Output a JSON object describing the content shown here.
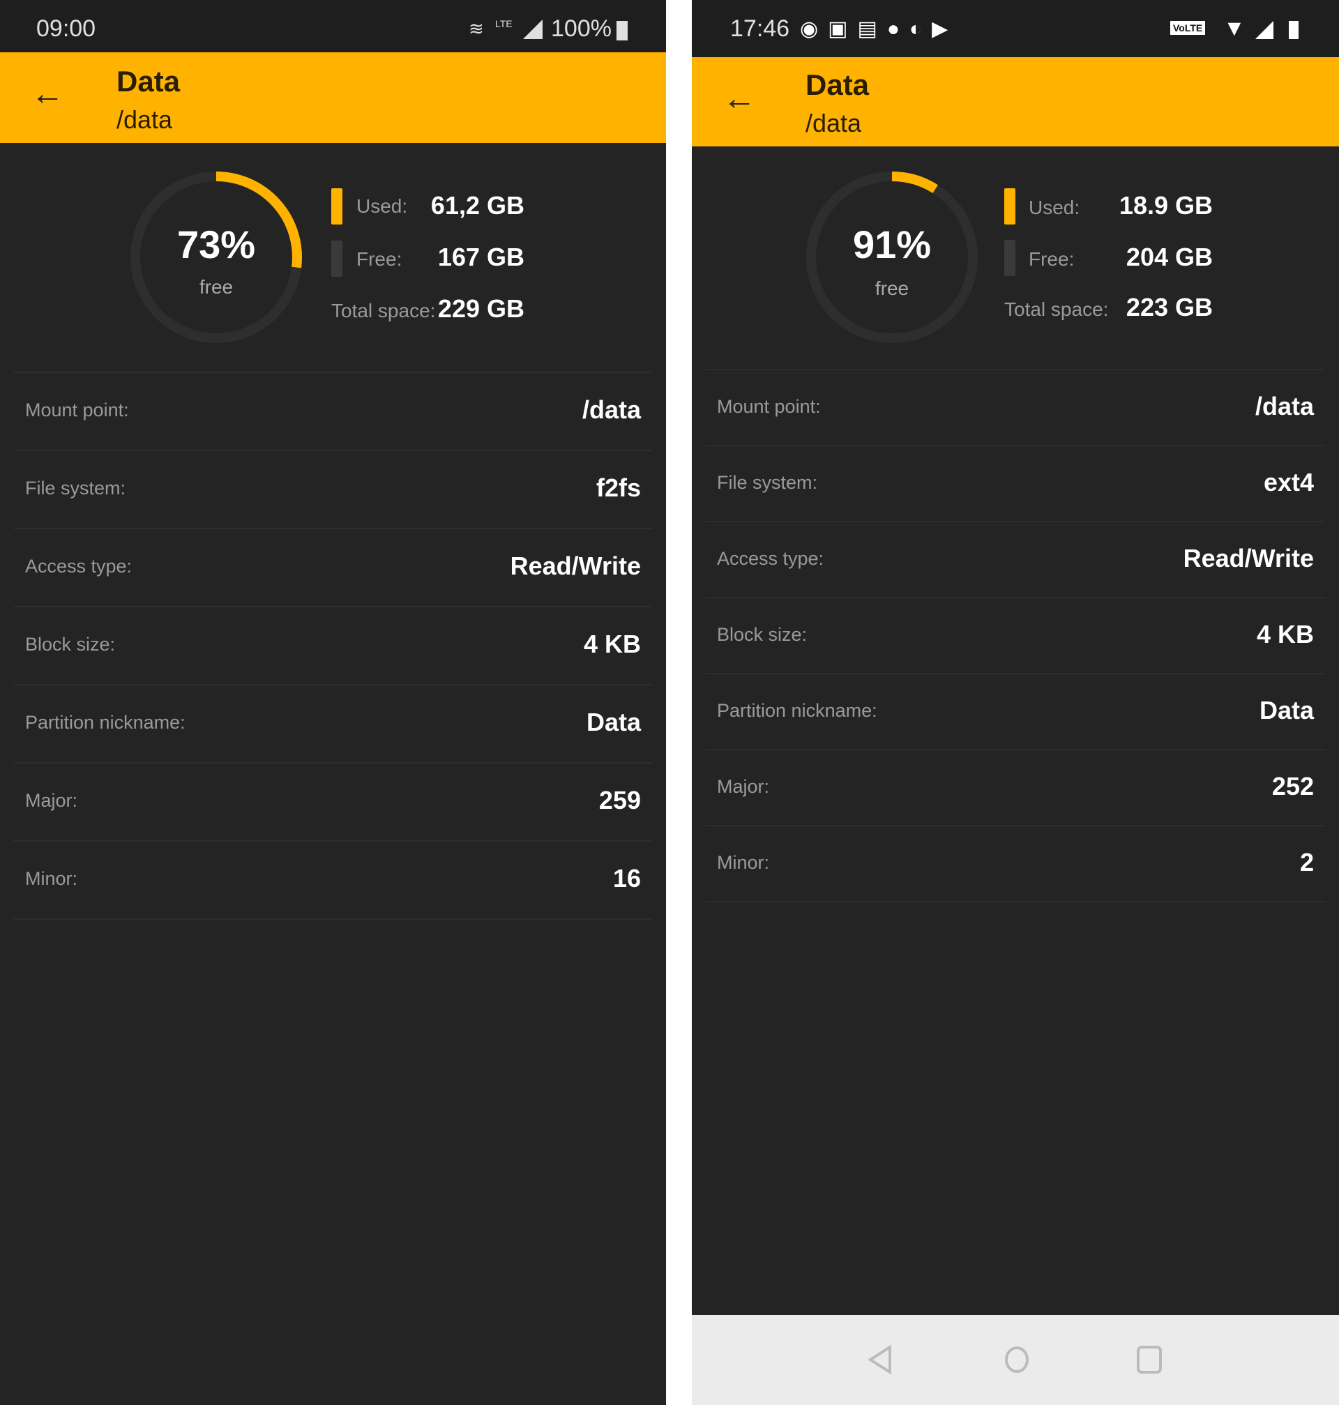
{
  "accent": "#ffb300",
  "panels": [
    {
      "status": {
        "time": "09:00",
        "icons": [
          "wifi-icon",
          "lte-icon",
          "signal-icon",
          "battery-icon"
        ],
        "battery": "100%",
        "lte": "LTE"
      },
      "appbar": {
        "title": "Data",
        "subtitle": "/data",
        "back_icon": "arrow-left-icon"
      },
      "usage": {
        "free_percent": 73,
        "percent_label": "73%",
        "free_label": "free",
        "used_label": "Used:",
        "used": "61,2 GB",
        "free_text_label": "Free:",
        "free": "167 GB",
        "total_label": "Total space:",
        "total": "229 GB"
      },
      "rows": [
        {
          "label": "Mount point:",
          "value": "/data"
        },
        {
          "label": "File system:",
          "value": "f2fs"
        },
        {
          "label": "Access type:",
          "value": "Read/Write"
        },
        {
          "label": "Block size:",
          "value": "4 KB"
        },
        {
          "label": "Partition nickname:",
          "value": "Data"
        },
        {
          "label": "Major:",
          "value": "259"
        },
        {
          "label": "Minor:",
          "value": "16"
        }
      ]
    },
    {
      "status": {
        "time": "17:46",
        "icons": [
          "messenger-icon",
          "facebook-icon",
          "message-icon",
          "circle-icon",
          "chrome-icon",
          "play-icon",
          "volte-icon",
          "wifi-icon",
          "signal-icon",
          "battery-icon"
        ],
        "volte": "VoLTE"
      },
      "appbar": {
        "title": "Data",
        "subtitle": "/data",
        "back_icon": "arrow-left-icon"
      },
      "usage": {
        "free_percent": 91,
        "percent_label": "91%",
        "free_label": "free",
        "used_label": "Used:",
        "used": "18.9 GB",
        "free_text_label": "Free:",
        "free": "204 GB",
        "total_label": "Total space:",
        "total": "223 GB"
      },
      "rows": [
        {
          "label": "Mount point:",
          "value": "/data"
        },
        {
          "label": "File system:",
          "value": "ext4"
        },
        {
          "label": "Access type:",
          "value": "Read/Write"
        },
        {
          "label": "Block size:",
          "value": "4 KB"
        },
        {
          "label": "Partition nickname:",
          "value": "Data"
        },
        {
          "label": "Major:",
          "value": "252"
        },
        {
          "label": "Minor:",
          "value": "2"
        }
      ],
      "navbar": [
        "back-icon",
        "home-icon",
        "recents-icon"
      ]
    }
  ]
}
